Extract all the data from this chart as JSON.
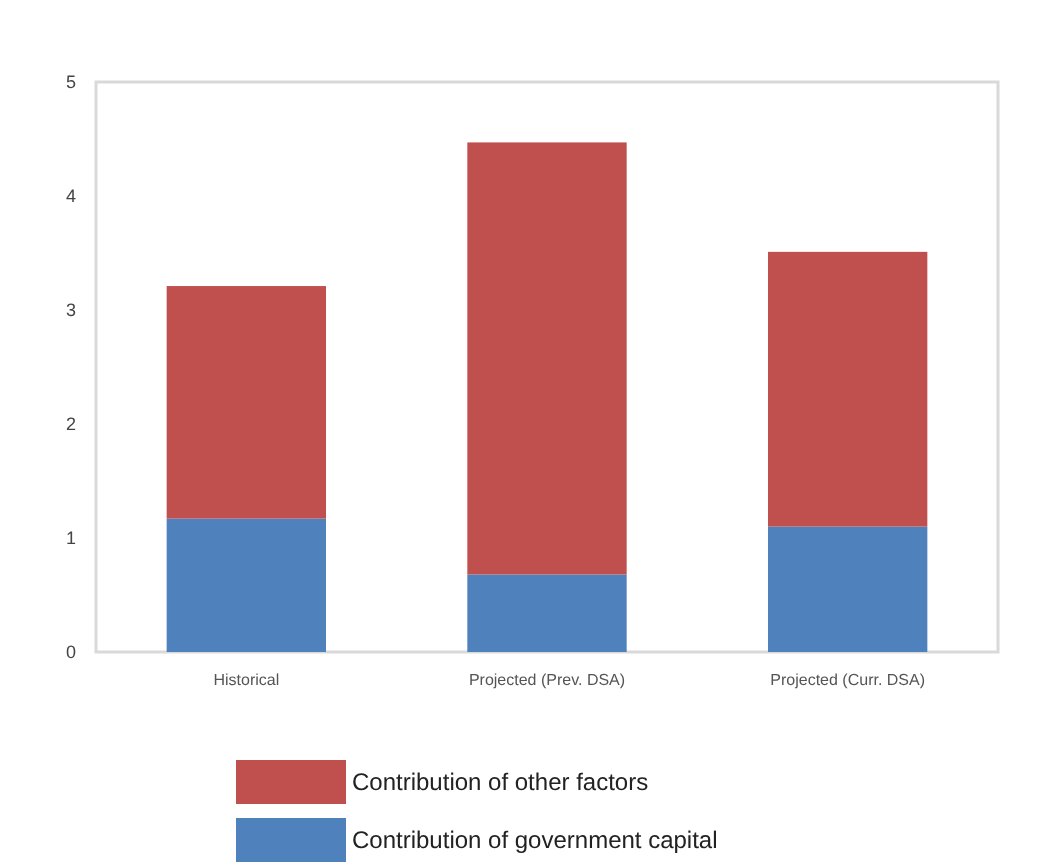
{
  "chart_data": {
    "type": "bar",
    "stacked": true,
    "categories": [
      "Historical",
      "Projected (Prev. DSA)",
      "Projected (Curr. DSA)"
    ],
    "series": [
      {
        "name": "Contribution of government capital",
        "color": "#4f81bd",
        "values": [
          1.17,
          0.68,
          1.1
        ]
      },
      {
        "name": "Contribution of other factors",
        "color": "#c0504d",
        "values": [
          2.04,
          3.79,
          2.41
        ]
      }
    ],
    "ylim": [
      0,
      5
    ],
    "yticks": [
      0,
      1,
      2,
      3,
      4,
      5
    ],
    "grid": false,
    "legend": "bottom"
  }
}
